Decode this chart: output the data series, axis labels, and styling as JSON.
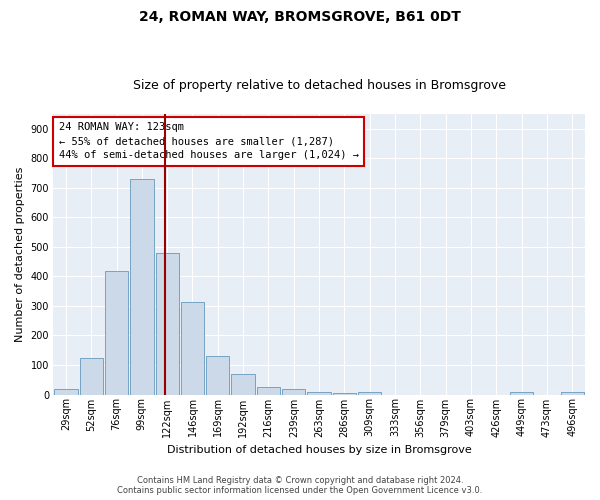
{
  "title": "24, ROMAN WAY, BROMSGROVE, B61 0DT",
  "subtitle": "Size of property relative to detached houses in Bromsgrove",
  "xlabel": "Distribution of detached houses by size in Bromsgrove",
  "ylabel": "Number of detached properties",
  "footer_line1": "Contains HM Land Registry data © Crown copyright and database right 2024.",
  "footer_line2": "Contains public sector information licensed under the Open Government Licence v3.0.",
  "categories": [
    "29sqm",
    "52sqm",
    "76sqm",
    "99sqm",
    "122sqm",
    "146sqm",
    "169sqm",
    "192sqm",
    "216sqm",
    "239sqm",
    "263sqm",
    "286sqm",
    "309sqm",
    "333sqm",
    "356sqm",
    "379sqm",
    "403sqm",
    "426sqm",
    "449sqm",
    "473sqm",
    "496sqm"
  ],
  "values": [
    18,
    122,
    418,
    730,
    480,
    315,
    132,
    68,
    27,
    20,
    10,
    5,
    8,
    0,
    0,
    0,
    0,
    0,
    8,
    0,
    8
  ],
  "bar_color": "#ccd9e8",
  "bar_edge_color": "#6699bb",
  "vline_x": 3.93,
  "vline_color": "#990000",
  "annotation_text": "24 ROMAN WAY: 123sqm\n← 55% of detached houses are smaller (1,287)\n44% of semi-detached houses are larger (1,024) →",
  "annotation_box_facecolor": "#ffffff",
  "annotation_box_edgecolor": "#cc0000",
  "ylim": [
    0,
    950
  ],
  "yticks": [
    0,
    100,
    200,
    300,
    400,
    500,
    600,
    700,
    800,
    900
  ],
  "bg_color": "#ffffff",
  "plot_bg_color": "#e8eef5",
  "grid_color": "#ffffff",
  "title_fontsize": 10,
  "subtitle_fontsize": 9,
  "axis_label_fontsize": 8,
  "tick_fontsize": 7,
  "footer_fontsize": 6
}
